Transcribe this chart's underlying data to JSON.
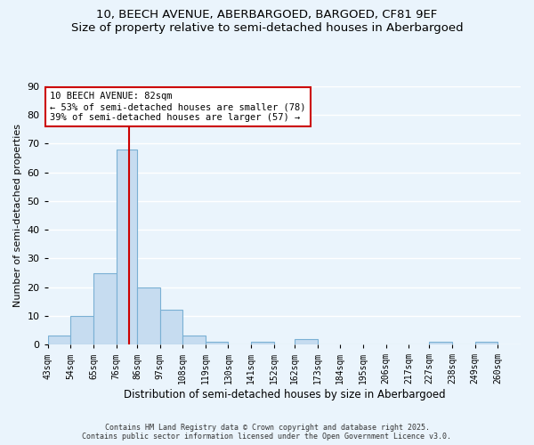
{
  "title": "10, BEECH AVENUE, ABERBARGOED, BARGOED, CF81 9EF",
  "subtitle": "Size of property relative to semi-detached houses in Aberbargoed",
  "xlabel": "Distribution of semi-detached houses by size in Aberbargoed",
  "ylabel": "Number of semi-detached properties",
  "bin_labels": [
    "43sqm",
    "54sqm",
    "65sqm",
    "76sqm",
    "86sqm",
    "97sqm",
    "108sqm",
    "119sqm",
    "130sqm",
    "141sqm",
    "152sqm",
    "162sqm",
    "173sqm",
    "184sqm",
    "195sqm",
    "206sqm",
    "217sqm",
    "227sqm",
    "238sqm",
    "249sqm",
    "260sqm"
  ],
  "bin_edges": [
    43,
    54,
    65,
    76,
    86,
    97,
    108,
    119,
    130,
    141,
    152,
    162,
    173,
    184,
    195,
    206,
    217,
    227,
    238,
    249,
    260
  ],
  "counts": [
    3,
    10,
    25,
    68,
    20,
    12,
    3,
    1,
    0,
    1,
    0,
    2,
    0,
    0,
    0,
    0,
    0,
    1,
    0,
    1
  ],
  "bar_color": "#c6dcf0",
  "bar_edge_color": "#7ab0d4",
  "property_value": 82,
  "annotation_title": "10 BEECH AVENUE: 82sqm",
  "annotation_line1": "← 53% of semi-detached houses are smaller (78)",
  "annotation_line2": "39% of semi-detached houses are larger (57) →",
  "annotation_box_facecolor": "#ffffff",
  "annotation_box_edgecolor": "#cc0000",
  "vline_color": "#cc0000",
  "ylim": [
    0,
    90
  ],
  "yticks": [
    0,
    10,
    20,
    30,
    40,
    50,
    60,
    70,
    80,
    90
  ],
  "footer_line1": "Contains HM Land Registry data © Crown copyright and database right 2025.",
  "footer_line2": "Contains public sector information licensed under the Open Government Licence v3.0.",
  "bg_color": "#eaf4fc",
  "grid_color": "#ffffff"
}
